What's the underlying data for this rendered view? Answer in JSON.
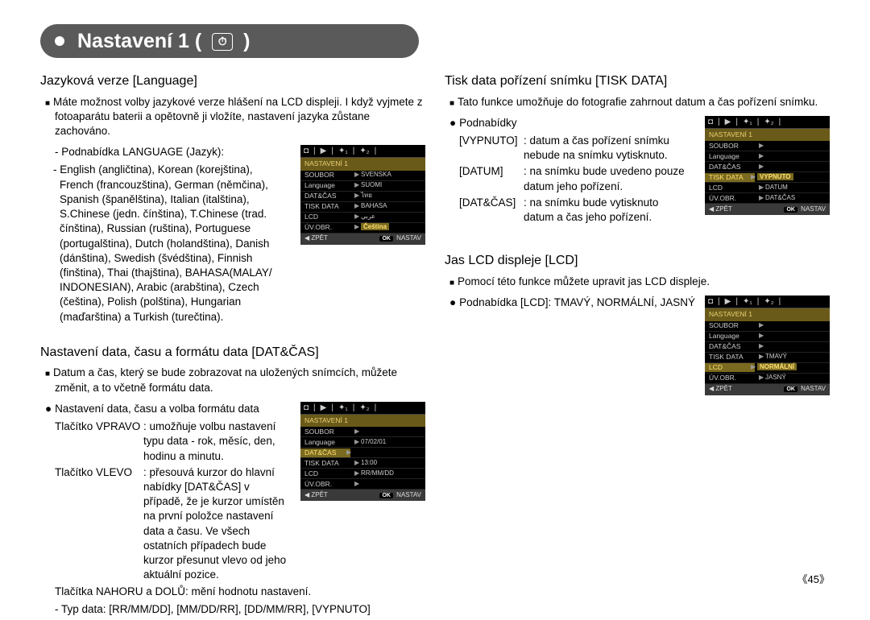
{
  "page": {
    "title_prefix": "Nastavení 1 (",
    "title_suffix": ")",
    "icon_glyph": "⏱",
    "number": "45"
  },
  "left": {
    "sec1": {
      "heading": "Jazyková verze [Language]",
      "p1": "Máte možnost volby jazykové verze hlášení na LCD displeji. I když vyjmete z fotoaparátu baterii a opětovně ji vložíte, nastavení jazyka zůstane zachováno.",
      "sub_label": "- Podnabídka LANGUAGE (Jazyk):",
      "lang_list": "- English (angličtina), Korean (korejština), French (francouzština), German (němčina), Spanish (španělština), Italian (italština), S.Chinese (jedn. čínština), T.Chinese (trad. čínština), Russian (ruština), Portuguese (portugalština), Dutch (holandština), Danish (dánština), Swedish (švédština), Finnish (finština), Thai (thajština), BAHASA(MALAY/ INDONESIAN), Arabic (arabština), Czech (čeština), Polish (polština), Hungarian (maďarština) a Turkish (turečtina)."
    },
    "sec2": {
      "heading": "Nastavení data, času a formátu data [DAT&ČAS]",
      "p1": "Datum a čas, který se bude zobrazovat na uložených snímcích, můžete změnit, a to včetně formátu data.",
      "dot1": "Nastavení data, času a volba formátu data",
      "rows": [
        {
          "k": "Tlačítko VPRAVO",
          "v": ": umožňuje volbu nastavení typu data - rok, měsíc, den, hodinu a minutu."
        },
        {
          "k": "Tlačítko VLEVO",
          "v": ": přesouvá kurzor do hlavní nabídky [DAT&ČAS] v případě, že je kurzor umístěn na první položce nastavení data a času. Ve všech ostatních případech bude kurzor přesunut vlevo od jeho aktuální pozice."
        }
      ],
      "line3": "Tlačítka NAHORU a DOLŮ: mění hodnotu nastavení.",
      "line4": "- Typ data: [RR/MM/DD], [MM/DD/RR], [DD/MM/RR], [VYPNUTO]"
    }
  },
  "right": {
    "sec1": {
      "heading": "Tisk data pořízení snímku [TISK DATA]",
      "p1": "Tato funkce umožňuje do fotografie zahrnout datum a čas pořízení snímku.",
      "dot1": "Podnabídky",
      "rows": [
        {
          "k": "[VYPNUTO]",
          "v": ": datum a čas pořízení snímku nebude na snímku vytisknuto."
        },
        {
          "k": "[DATUM]",
          "v": ": na snímku bude uvedeno pouze datum jeho pořízení."
        },
        {
          "k": "[DAT&ČAS]",
          "v": ": na snímku bude vytisknuto datum a čas jeho pořízení."
        }
      ]
    },
    "sec2": {
      "heading": "Jas LCD displeje [LCD]",
      "p1": "Pomocí této funkce můžete upravit jas LCD displeje.",
      "dot1": "Podnabídka [LCD]: TMAVÝ, NORMÁLNÍ, JASNÝ"
    }
  },
  "menuscreens": {
    "heading_text": "NASTAVENÍ 1",
    "tabs_glyphs": [
      "📷",
      "▶",
      "🔧₁",
      "🔧₂"
    ],
    "back": "ZPĚT",
    "ok": "OK",
    "set": "NASTAV",
    "lang": {
      "rows": [
        {
          "l": "SOUBOR",
          "v": "SVENSKA",
          "sel": false
        },
        {
          "l": "Language",
          "v": "SUOMI",
          "sel": false
        },
        {
          "l": "DAT&ČAS",
          "v": "ไทย",
          "sel": false
        },
        {
          "l": "TISK DATA",
          "v": "BAHASA",
          "sel": false
        },
        {
          "l": "LCD",
          "v": "عربي",
          "sel": false
        },
        {
          "l": "ÚV.OBR.",
          "v": "Čeština",
          "sel": false,
          "hl": true
        }
      ]
    },
    "date": {
      "rows": [
        {
          "l": "SOUBOR",
          "v": "",
          "sel": false
        },
        {
          "l": "Language",
          "v": "07/02/01",
          "sel": false
        },
        {
          "l": "DAT&ČAS",
          "v": "",
          "sel": true
        },
        {
          "l": "TISK DATA",
          "v": "13:00",
          "sel": false
        },
        {
          "l": "LCD",
          "v": "RR/MM/DD",
          "sel": false
        },
        {
          "l": "ÚV.OBR.",
          "v": "",
          "sel": false
        }
      ]
    },
    "print": {
      "rows": [
        {
          "l": "SOUBOR",
          "v": "",
          "sel": false
        },
        {
          "l": "Language",
          "v": "",
          "sel": false
        },
        {
          "l": "DAT&ČAS",
          "v": "",
          "sel": false
        },
        {
          "l": "TISK DATA",
          "v": "VYPNUTO",
          "sel": true,
          "hl": true
        },
        {
          "l": "LCD",
          "v": "DATUM",
          "sel": false
        },
        {
          "l": "ÚV.OBR.",
          "v": "DAT&ČAS",
          "sel": false
        }
      ]
    },
    "lcd": {
      "rows": [
        {
          "l": "SOUBOR",
          "v": "",
          "sel": false
        },
        {
          "l": "Language",
          "v": "",
          "sel": false
        },
        {
          "l": "DAT&ČAS",
          "v": "",
          "sel": false
        },
        {
          "l": "TISK DATA",
          "v": "TMAVÝ",
          "sel": false
        },
        {
          "l": "LCD",
          "v": "NORMÁLNÍ",
          "sel": true,
          "hl": true
        },
        {
          "l": "ÚV.OBR.",
          "v": "JASNÝ",
          "sel": false
        }
      ]
    }
  }
}
